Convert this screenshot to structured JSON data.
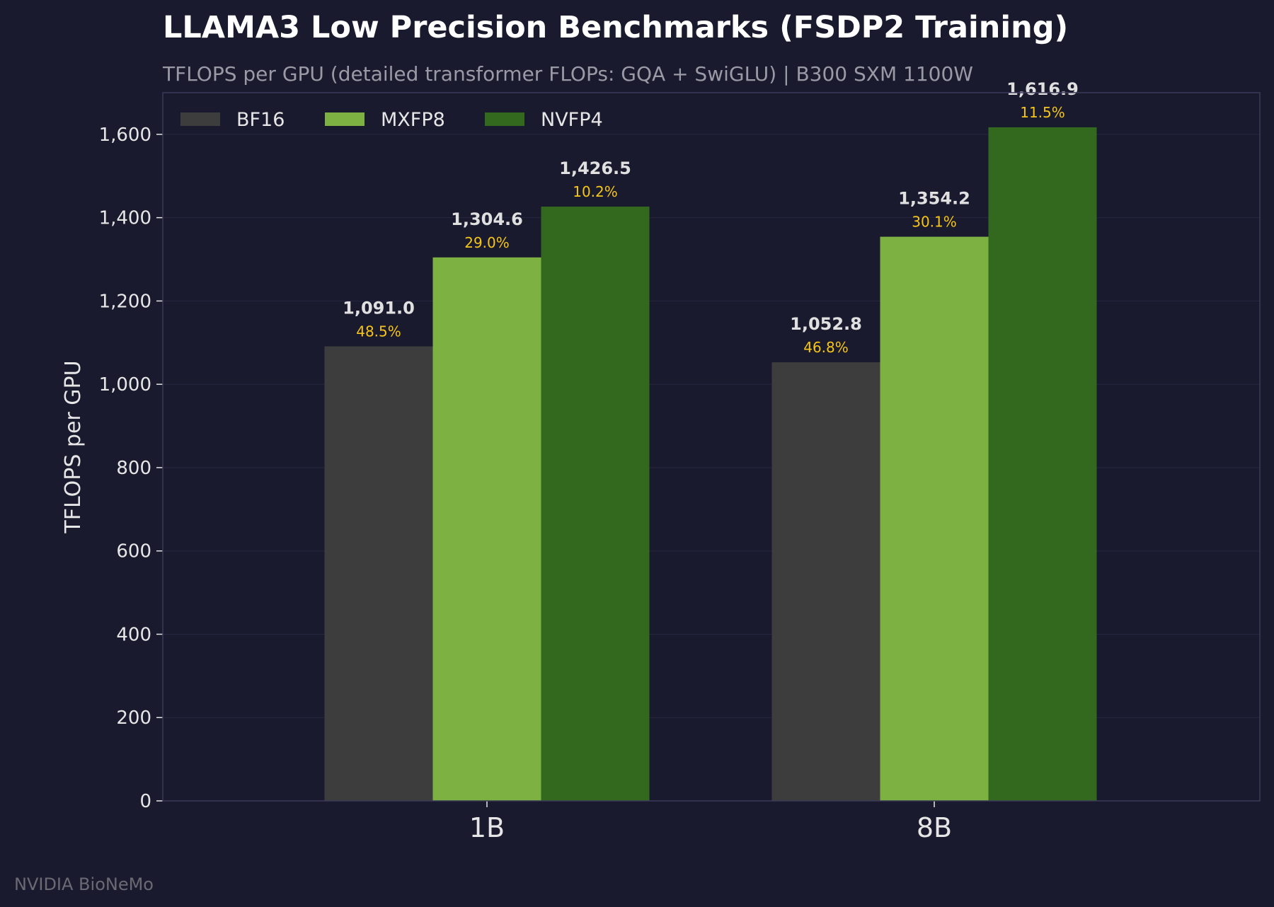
{
  "title": "LLAMA3 Low Precision Benchmarks (FSDP2 Training)",
  "subtitle": "TFLOPS per GPU  (detailed transformer FLOPs: GQA + SwiGLU)  |  B300 SXM 1100W",
  "watermark": "NVIDIA BioNeMo",
  "colors": {
    "background": "#1a1a2e",
    "plot_background": "#1a1a2e",
    "frame": "#3a3a58",
    "grid": "#262640",
    "percent_label": "#f5c518"
  },
  "chart_data": {
    "type": "bar",
    "title": "LLAMA3 Low Precision Benchmarks (FSDP2 Training)",
    "xlabel": "",
    "ylabel": "TFLOPS per GPU",
    "ylim": [
      0,
      1700
    ],
    "yticks": [
      0,
      200,
      400,
      600,
      800,
      1000,
      1200,
      1400,
      1600
    ],
    "ytick_labels": [
      "0",
      "200",
      "400",
      "600",
      "800",
      "1,000",
      "1,200",
      "1,400",
      "1,600"
    ],
    "grid": true,
    "legend_position": "top-left",
    "categories": [
      "1B",
      "8B"
    ],
    "series": [
      {
        "name": "BF16",
        "color": "#3d3d3d",
        "values": [
          1091.0,
          1052.8
        ],
        "value_labels": [
          "1,091.0",
          "1,052.8"
        ],
        "percent_labels": [
          "48.5%",
          "46.8%"
        ]
      },
      {
        "name": "MXFP8",
        "color": "#7db243",
        "values": [
          1304.6,
          1354.2
        ],
        "value_labels": [
          "1,304.6",
          "1,354.2"
        ],
        "percent_labels": [
          "29.0%",
          "30.1%"
        ]
      },
      {
        "name": "NVFP4",
        "color": "#33691e",
        "values": [
          1426.5,
          1616.9
        ],
        "value_labels": [
          "1,426.5",
          "1,616.9"
        ],
        "percent_labels": [
          "10.2%",
          "11.5%"
        ]
      }
    ]
  }
}
